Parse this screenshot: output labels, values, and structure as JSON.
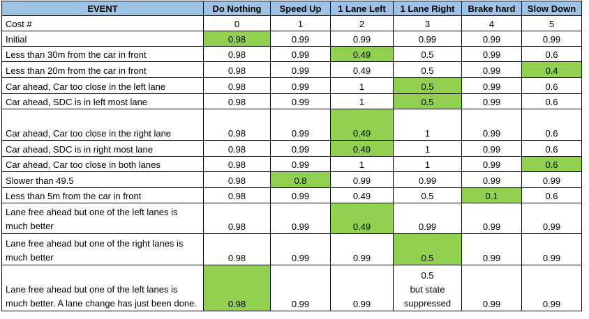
{
  "highlight_color": "#92d050",
  "header_color": "#9ec3e6",
  "headers": [
    "EVENT",
    "Do Nothing",
    "Speed Up",
    "1 Lane Left",
    "1 Lane Right",
    "Brake hard",
    "Slow Down"
  ],
  "rows": [
    {
      "label": "Cost #",
      "cells": [
        "0",
        "1",
        "2",
        "3",
        "4",
        "5"
      ],
      "highlight": null
    },
    {
      "label": "Initial",
      "cells": [
        "0.98",
        "0.99",
        "0.99",
        "0.99",
        "0.99",
        "0.99"
      ],
      "highlight": 0
    },
    {
      "label": "Less than 30m from the car in front",
      "cells": [
        "0.98",
        "0.99",
        "0.49",
        "0.5",
        "0.99",
        "0.6"
      ],
      "highlight": 2
    },
    {
      "label": "Less than 20m from the car in front",
      "cells": [
        "0.98",
        "0.99",
        "0.49",
        "0.5",
        "0.99",
        "0.4"
      ],
      "highlight": 5
    },
    {
      "label": "Car ahead, Car too close in the left lane",
      "cells": [
        "0.98",
        "0.99",
        "1",
        "0.5",
        "0.99",
        "0.6"
      ],
      "highlight": 3
    },
    {
      "label": "Car ahead, SDC is in left most lane",
      "cells": [
        "0.98",
        "0.99",
        "1",
        "0.5",
        "0.99",
        "0.6"
      ],
      "highlight": 3
    },
    {
      "label": "Car ahead, Car too close in the right lane",
      "cells": [
        "0.98",
        "0.99",
        "0.49",
        "1",
        "0.99",
        "0.6"
      ],
      "highlight": 2
    },
    {
      "label": "Car ahead, SDC is in right most lane",
      "cells": [
        "0.98",
        "0.99",
        "0.49",
        "1",
        "0.99",
        "0.6"
      ],
      "highlight": 2
    },
    {
      "label": "Car ahead, Car too close in both lanes",
      "cells": [
        "0.98",
        "0.99",
        "1",
        "1",
        "0.99",
        "0.6"
      ],
      "highlight": 5
    },
    {
      "label": "Slower than 49.5",
      "cells": [
        "0.98",
        "0.8",
        "0.99",
        "0.99",
        "0.99",
        "0.99"
      ],
      "highlight": 1
    },
    {
      "label": "Less than 5m from the car in front",
      "cells": [
        "0.98",
        "0.99",
        "0.49",
        "0.5",
        "0.1",
        "0.6"
      ],
      "highlight": 4
    },
    {
      "label": "Lane free ahead but one of the left lanes is much better",
      "cells": [
        "0.98",
        "0.99",
        "0.49",
        "0.99",
        "0.99",
        "0.99"
      ],
      "highlight": 2
    },
    {
      "label": "Lane free ahead but one of the right lanes is much better",
      "cells": [
        "0.98",
        "0.99",
        "0.99",
        "0.5",
        "0.99",
        "0.99"
      ],
      "highlight": 3
    },
    {
      "label": "Lane free ahead but one of the left lanes is much better. A lane change has just been done.",
      "cells": [
        "0.98",
        "0.99",
        "0.99",
        "0.5 but state suppressed",
        "0.99",
        "0.99"
      ],
      "highlight": 0
    }
  ],
  "special": {
    "value": "0.5",
    "line1": "but state",
    "line2": "suppressed"
  }
}
